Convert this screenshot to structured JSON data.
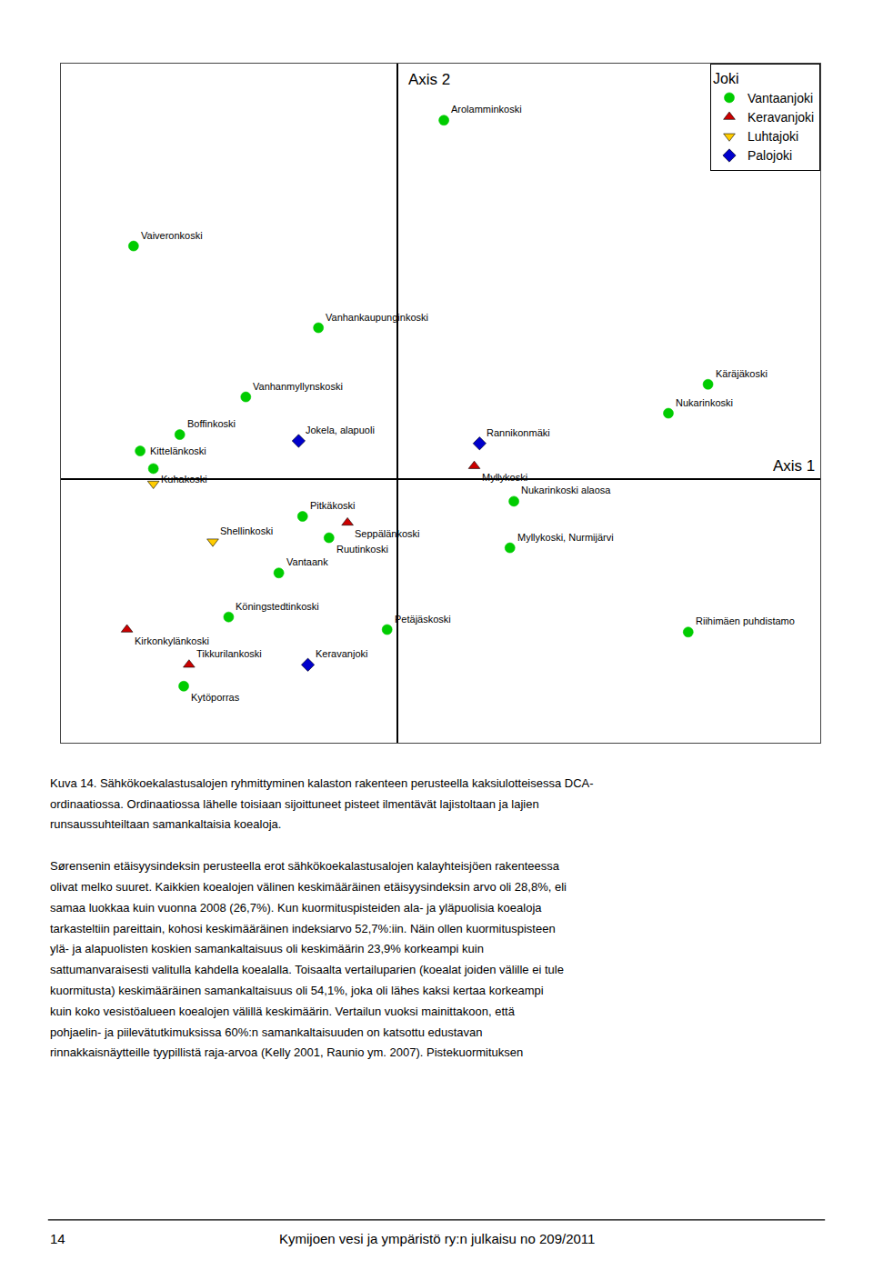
{
  "chart_data": {
    "type": "scatter",
    "x_label": "Axis 1",
    "y_label": "Axis 2",
    "legend_title": "Joki",
    "legend": "upper right",
    "grid": false,
    "tick_labels": false,
    "xlim": [
      -2.55,
      3.2
    ],
    "ylim": [
      -2.1,
      3.3
    ],
    "series": [
      {
        "name": "Vantaanjoki",
        "color": "#00cc00",
        "marker": "circle",
        "x": [
          0.35,
          -2.0,
          -0.6,
          -1.15,
          2.35,
          2.05,
          -1.65,
          -1.95,
          -1.85,
          0.88,
          -0.72,
          -0.52,
          0.85,
          -0.9,
          -1.28,
          -0.08,
          -1.62,
          2.2
        ],
        "values": [
          2.85,
          1.85,
          1.2,
          0.65,
          0.75,
          0.52,
          0.35,
          0.22,
          0.08,
          -0.18,
          -0.3,
          -0.47,
          -0.55,
          -0.75,
          -1.1,
          -1.2,
          -1.65,
          -1.22
        ],
        "labels": [
          "Arolamminkoski",
          "Vaiveronkoski",
          "Vanhankaupunginkoski",
          "Vanhanmyllynskoski",
          "Käräjäkoski",
          "Nukarinkoski",
          "Boffinkoski",
          "Kittelänkoski",
          "Kuhakoski",
          "Nukarinkoski alaosa",
          "Pitkäkoski",
          "Ruutinkoski",
          "Myllykoski, Nurmijärvi",
          "Vantaank",
          "Köningstedtinkoski",
          "Petäjäskoski",
          "Kytöporras",
          "Riihimäen puhdistamo"
        ]
      },
      {
        "name": "Keravanjoki",
        "color": "#cc0000",
        "marker": "triangle-up",
        "x": [
          0.58,
          -0.38,
          -2.05,
          -1.58
        ],
        "values": [
          0.1,
          -0.35,
          -1.2,
          -1.48
        ],
        "labels": [
          "Myllykoski",
          "Seppälänkoski",
          "Kirkonkylänkoski",
          "Tikkurilankoski"
        ]
      },
      {
        "name": "Luhtajoki",
        "color": "#ffcc00",
        "marker": "triangle-down",
        "x": [
          -1.85,
          -1.4
        ],
        "values": [
          -0.04,
          -0.5
        ],
        "labels": [
          null,
          "Shellinkoski"
        ]
      },
      {
        "name": "Palojoki",
        "color": "#0000cc",
        "marker": "diamond",
        "x": [
          0.62,
          -0.75,
          -0.68
        ],
        "values": [
          0.28,
          0.3,
          -1.48
        ],
        "labels": [
          "Rannikonmäki",
          "Jokela, alapuoli",
          "Keravanjoki"
        ]
      }
    ],
    "annotations": [
      [
        "Kuva 14. Sähkökoekalastusalojen ryhmittyminen kalaston rakenteen perusteella kaksiulotteisessa DCA-",
        "ordinaatiossa. Ordinaatiossa lähelle toisiaan sijoittuneet pisteet ilmentävät lajistoltaan ja lajien",
        "runsaussuhteiltaan samankaltaisia koealoja."
      ],
      [
        "Sørensenin etäisyysindeksin perusteella erot sähkökoekalastusalojen kalayhteisjöen rakenteessa",
        "olivat melko suuret. Kaikkien koealojen välinen keskimääräinen etäisyysindeksin arvo oli 28,8%, eli",
        "samaa luokkaa kuin vuonna 2008 (26,7%). Kun kuormituspisteiden ala- ja yläpuolisia koealoja",
        "tarkasteltiin pareittain, kohosi keskimääräinen indeksiarvo 52,7%:iin. Näin ollen kuormituspisteen",
        "ylä- ja alapuolisten koskien samankaltaisuus oli keskimäärin 23,9% korkeampi kuin",
        "sattumanvaraisesti valitulla kahdella koealalla. Toisaalta vertailuparien (koealat joiden välille ei tule",
        "kuormitusta) keskimääräinen samankaltaisuus oli 54,1%, joka oli lähes kaksi kertaa korkeampi",
        "kuin koko vesistöalueen koealojen välillä keskimäärin. Vertailun vuoksi mainittakoon, että",
        "pohjaelin- ja piilevätutkimuksissa 60%:n samankaltaisuuden on katsottu edustavan",
        "rinnakkaisnäytteille tyypillistä raja-arvoa (Kelly 2001, Raunio ym. 2007). Pistekuormituksen"
      ],
      [
        "14",
        "Kymijoen vesi ja ympäristö ry:n julkaisu no 209/2011"
      ]
    ]
  }
}
